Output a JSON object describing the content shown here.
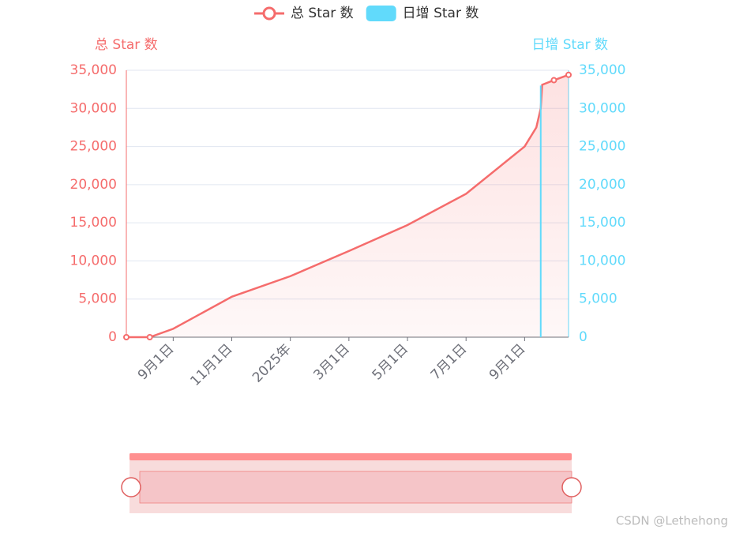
{
  "chart_data": {
    "type": "line",
    "legend_position": "top",
    "y_axis_title": "总 Star 数",
    "y2_axis_title": "日增 Star 数",
    "x": [
      -1.6,
      -0.8,
      0,
      2,
      4,
      6,
      8,
      10,
      12,
      12.4,
      12.55,
      12.6,
      13.0,
      13.5
    ],
    "series": [
      {
        "name": "总 Star 数",
        "color": "#f56c6c",
        "type": "line",
        "values": [
          0,
          0,
          1100,
          5300,
          8000,
          11300,
          14700,
          18800,
          25000,
          27500,
          30000,
          33100,
          33700,
          34400
        ]
      },
      {
        "name": "日增 Star 数",
        "color": "#61dafb",
        "type": "bar",
        "axis": "y2",
        "x": [
          12.55
        ],
        "values": [
          33000
        ]
      }
    ],
    "xlim": [
      -1.6,
      13.5
    ],
    "xticks": [
      {
        "value": 0,
        "label": "9月1日"
      },
      {
        "value": 2,
        "label": "11月1日"
      },
      {
        "value": 4,
        "label": "2025年"
      },
      {
        "value": 6,
        "label": "3月1日"
      },
      {
        "value": 8,
        "label": "5月1日"
      },
      {
        "value": 10,
        "label": "7月1日"
      },
      {
        "value": 12,
        "label": "9月1日"
      }
    ],
    "ylim": [
      0,
      35000
    ],
    "yticks": [
      0,
      {
        "value": 5000,
        "label": "5,000"
      },
      {
        "value": 10000,
        "label": "10,000"
      },
      {
        "value": 15000,
        "label": "15,000"
      },
      {
        "value": 20000,
        "label": "20,000"
      },
      {
        "value": 25000,
        "label": "25,000"
      },
      {
        "value": 30000,
        "label": "30,000"
      },
      {
        "value": 35000,
        "label": "35,000"
      }
    ],
    "y2lim": [
      0,
      35000
    ],
    "y2ticks": [
      0,
      {
        "value": 5000,
        "label": "5,000"
      },
      {
        "value": 10000,
        "label": "10,000"
      },
      {
        "value": 15000,
        "label": "15,000"
      },
      {
        "value": 20000,
        "label": "20,000"
      },
      {
        "value": 25000,
        "label": "25,000"
      },
      {
        "value": 30000,
        "label": "30,000"
      },
      {
        "value": 35000,
        "label": "35,000"
      }
    ],
    "grid": true,
    "watermark": "CSDN @Lethehong"
  }
}
